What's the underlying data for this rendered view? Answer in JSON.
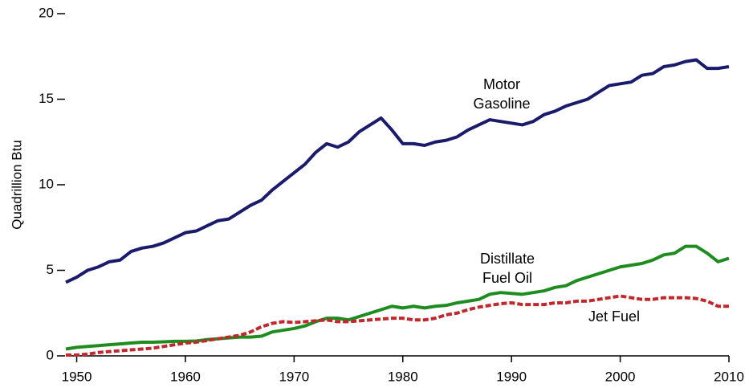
{
  "chart_data": {
    "type": "line",
    "y_label": "Quadrillion Btu",
    "x": [
      1949,
      1950,
      1951,
      1952,
      1953,
      1954,
      1955,
      1956,
      1957,
      1958,
      1959,
      1960,
      1961,
      1962,
      1963,
      1964,
      1965,
      1966,
      1967,
      1968,
      1969,
      1970,
      1971,
      1972,
      1973,
      1974,
      1975,
      1976,
      1977,
      1978,
      1979,
      1980,
      1981,
      1982,
      1983,
      1984,
      1985,
      1986,
      1987,
      1988,
      1989,
      1990,
      1991,
      1992,
      1993,
      1994,
      1995,
      1996,
      1997,
      1998,
      1999,
      2000,
      2001,
      2002,
      2003,
      2004,
      2005,
      2006,
      2007,
      2008,
      2009,
      2010
    ],
    "series": [
      {
        "name": [
          "Motor",
          "Gasoline"
        ],
        "color": "#1b1b6b",
        "dash": false,
        "values": [
          4.3,
          4.6,
          5.0,
          5.2,
          5.5,
          5.6,
          6.1,
          6.3,
          6.4,
          6.6,
          6.9,
          7.2,
          7.3,
          7.6,
          7.9,
          8.0,
          8.4,
          8.8,
          9.1,
          9.7,
          10.2,
          10.7,
          11.2,
          11.9,
          12.4,
          12.2,
          12.5,
          13.1,
          13.5,
          13.9,
          13.2,
          12.4,
          12.4,
          12.3,
          12.5,
          12.6,
          12.8,
          13.2,
          13.5,
          13.8,
          13.7,
          13.6,
          13.5,
          13.7,
          14.1,
          14.3,
          14.6,
          14.8,
          15.0,
          15.4,
          15.8,
          15.9,
          16.0,
          16.4,
          16.5,
          16.9,
          17.0,
          17.2,
          17.3,
          16.8,
          16.8,
          16.9
        ]
      },
      {
        "name": [
          "Distillate",
          "Fuel Oil"
        ],
        "color": "#1e8c1e",
        "dash": false,
        "values": [
          0.4,
          0.5,
          0.55,
          0.6,
          0.65,
          0.7,
          0.75,
          0.8,
          0.8,
          0.82,
          0.85,
          0.85,
          0.87,
          0.95,
          1.0,
          1.05,
          1.1,
          1.1,
          1.15,
          1.4,
          1.5,
          1.6,
          1.75,
          2.0,
          2.2,
          2.2,
          2.1,
          2.3,
          2.5,
          2.7,
          2.9,
          2.8,
          2.9,
          2.8,
          2.9,
          2.95,
          3.1,
          3.2,
          3.3,
          3.6,
          3.7,
          3.65,
          3.6,
          3.7,
          3.8,
          4.0,
          4.1,
          4.4,
          4.6,
          4.8,
          5.0,
          5.2,
          5.3,
          5.4,
          5.6,
          5.9,
          6.0,
          6.4,
          6.4,
          6.0,
          5.5,
          5.7
        ]
      },
      {
        "name": [
          "Jet Fuel"
        ],
        "color": "#c0282d",
        "dash": true,
        "values": [
          0.05,
          0.05,
          0.1,
          0.2,
          0.25,
          0.3,
          0.35,
          0.4,
          0.45,
          0.55,
          0.65,
          0.75,
          0.8,
          0.9,
          1.0,
          1.1,
          1.2,
          1.4,
          1.7,
          1.9,
          2.0,
          1.95,
          2.0,
          2.05,
          2.1,
          2.0,
          2.0,
          2.05,
          2.1,
          2.15,
          2.2,
          2.2,
          2.1,
          2.1,
          2.2,
          2.4,
          2.5,
          2.7,
          2.85,
          2.95,
          3.05,
          3.1,
          3.0,
          3.0,
          3.0,
          3.1,
          3.1,
          3.2,
          3.2,
          3.3,
          3.4,
          3.5,
          3.4,
          3.3,
          3.3,
          3.4,
          3.4,
          3.4,
          3.35,
          3.2,
          2.9,
          2.9
        ]
      }
    ],
    "xlim": [
      1949,
      2010
    ],
    "xticks": [
      1950,
      1960,
      1970,
      1980,
      1990,
      2000,
      2010
    ],
    "ylim": [
      0,
      20
    ],
    "yticks": [
      0,
      5,
      10,
      15,
      20
    ]
  }
}
